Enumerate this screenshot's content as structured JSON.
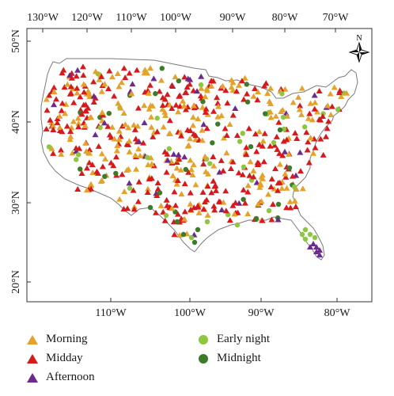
{
  "map": {
    "top_axis_labels": [
      "130°W",
      "120°W",
      "110°W",
      "100°W",
      "90°W",
      "80°W",
      "70°W"
    ],
    "bottom_axis_labels": [
      "110°W",
      "100°W",
      "90°W",
      "80°W"
    ],
    "left_axis_labels": [
      "50°N",
      "40°N",
      "30°N",
      "20°N"
    ],
    "compass_label": "N",
    "colors": {
      "morning": "#e5a22a",
      "midday": "#d7191c",
      "afternoon": "#6a2a8e",
      "early_night": "#8dc63f",
      "midnight": "#3d7a2a",
      "land": "#ffffff",
      "border": "#7a7a7a"
    }
  },
  "legend": {
    "items": [
      {
        "label": "Morning",
        "shape": "triangle",
        "color": "#e5a22a"
      },
      {
        "label": "Midday",
        "shape": "triangle",
        "color": "#d7191c"
      },
      {
        "label": "Afternoon",
        "shape": "triangle",
        "color": "#6a2a8e"
      },
      {
        "label": "Early night",
        "shape": "circle",
        "color": "#8dc63f"
      },
      {
        "label": "Midnight",
        "shape": "circle",
        "color": "#3d7a2a"
      }
    ]
  }
}
